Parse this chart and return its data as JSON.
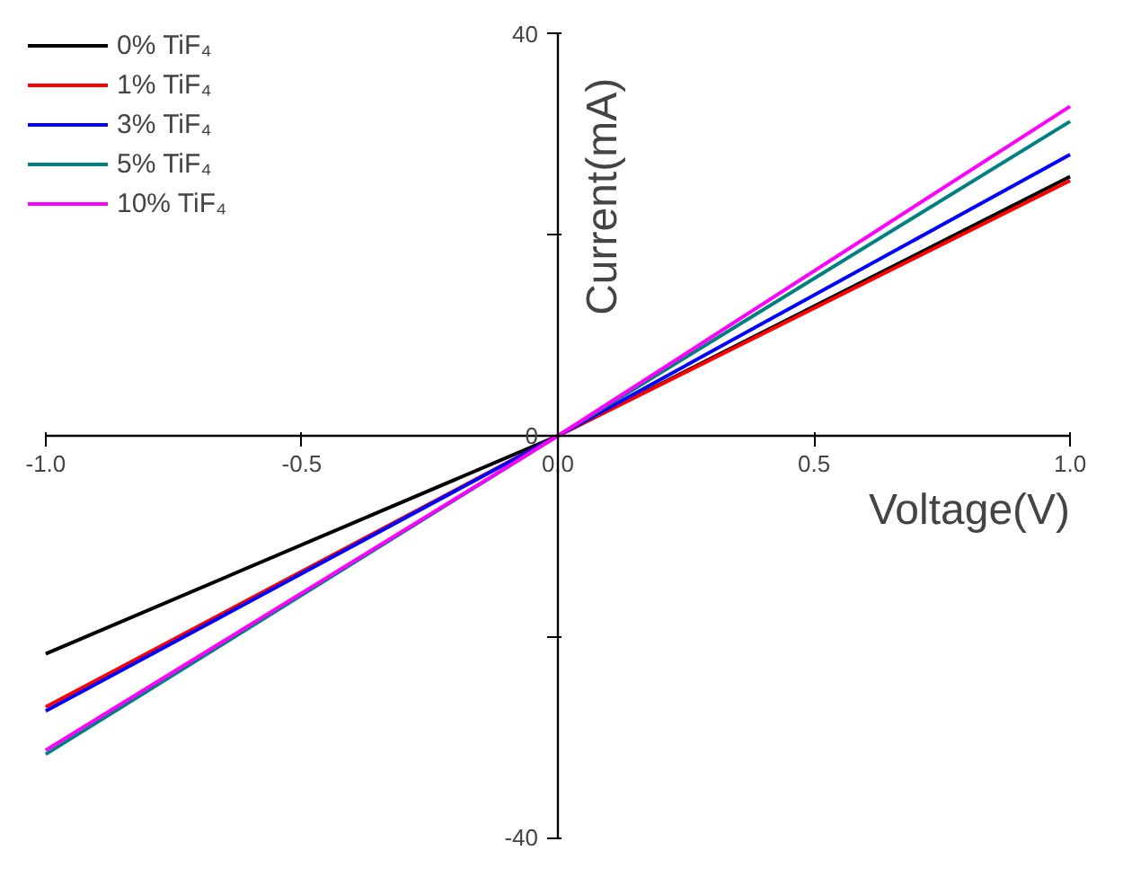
{
  "chart_data": {
    "type": "line",
    "xlabel": "Voltage(V)",
    "ylabel": "Current(mA)",
    "x": [
      -1,
      0,
      1
    ],
    "series": [
      {
        "name": "0% TiF₄",
        "color": "#000000",
        "values": [
          -21.7,
          0,
          25.8
        ]
      },
      {
        "name": "1% TiF₄",
        "color": "#ff0000",
        "values": [
          -27,
          0,
          25.4
        ]
      },
      {
        "name": "3% TiF₄",
        "color": "#0000ff",
        "values": [
          -27.4,
          0,
          28
        ]
      },
      {
        "name": "5% TiF₄",
        "color": "#008080",
        "values": [
          -31.7,
          0,
          31.3
        ]
      },
      {
        "name": "10% TiF₄",
        "color": "#ff00ff",
        "values": [
          -31.3,
          0,
          32.8
        ]
      }
    ],
    "xlim": [
      -1,
      1
    ],
    "ylim": [
      -40,
      40
    ],
    "xticks": [
      {
        "value": -1,
        "label": "-1.0"
      },
      -0.5,
      {
        "value": 0,
        "label": "0.0"
      },
      0.5,
      {
        "value": 1,
        "label": "1.0"
      }
    ],
    "yticks": [
      -40,
      {
        "value": -20,
        "label": null
      },
      0,
      {
        "value": 20,
        "label": null
      },
      40
    ],
    "grid": false,
    "legend": "top left",
    "marker": "none",
    "line_style": "solid"
  }
}
